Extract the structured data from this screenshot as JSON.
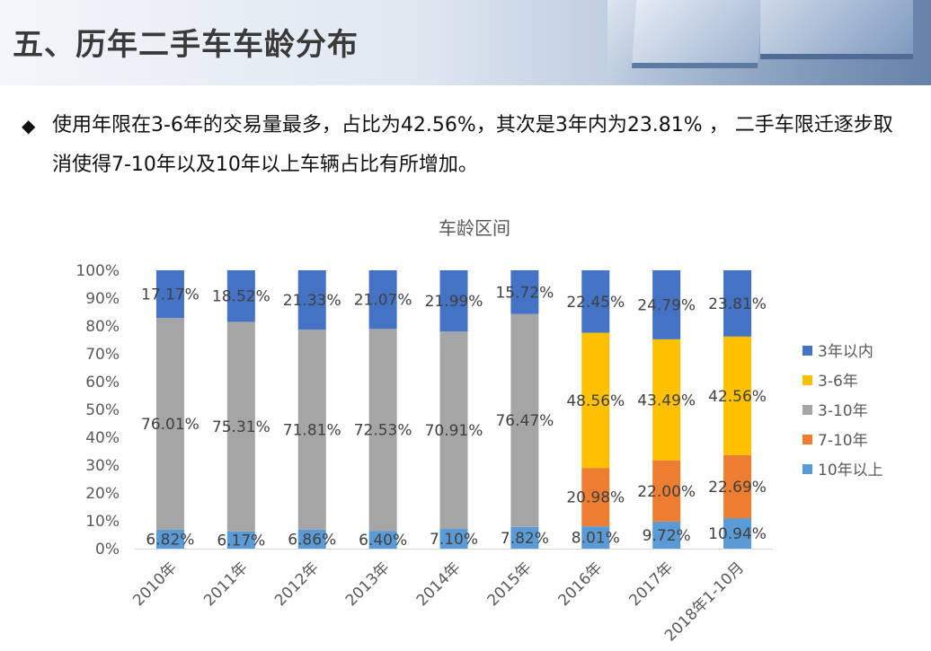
{
  "header": {
    "title": "五、历年二手车车龄分布"
  },
  "bullet": {
    "icon": "◆",
    "text": "使用年限在3-6年的交易量最多，占比为42.56%，其次是3年内为23.81% ， 二手车限迁逐步取消使得7-10年以及10年以上车辆占比有所增加。"
  },
  "chart_data": {
    "type": "bar",
    "stacked": true,
    "percent_stacked": true,
    "title": "车龄区间",
    "categories": [
      "2010年",
      "2011年",
      "2012年",
      "2013年",
      "2014年",
      "2015年",
      "2016年",
      "2017年",
      "2018年1-10月"
    ],
    "y_ticks": [
      "0%",
      "10%",
      "20%",
      "30%",
      "40%",
      "50%",
      "60%",
      "70%",
      "80%",
      "90%",
      "100%"
    ],
    "ylim": [
      0,
      100
    ],
    "legend_position": "right",
    "series": [
      {
        "name": "10年以上",
        "color": "#5b9bd5",
        "values": [
          6.82,
          6.17,
          6.86,
          6.4,
          7.1,
          7.82,
          8.01,
          9.72,
          10.94
        ],
        "labels": [
          "6.82%",
          "6.17%",
          "6.86%",
          "6.40%",
          "7.10%",
          "7.82%",
          "8.01%",
          "9.72%",
          "10.94%"
        ]
      },
      {
        "name": "7-10年",
        "color": "#ed7d31",
        "values": [
          0,
          0,
          0,
          0,
          0,
          0,
          20.98,
          22.0,
          22.69
        ],
        "labels": [
          "",
          "",
          "",
          "",
          "",
          "",
          "20.98%",
          "22.00%",
          "22.69%"
        ]
      },
      {
        "name": "3-10年",
        "color": "#a5a5a5",
        "values": [
          76.01,
          75.31,
          71.81,
          72.53,
          70.91,
          76.47,
          0,
          0,
          0
        ],
        "labels": [
          "76.01%",
          "75.31%",
          "71.81%",
          "72.53%",
          "70.91%",
          "76.47%",
          "",
          "",
          ""
        ]
      },
      {
        "name": "3-6年",
        "color": "#ffc000",
        "values": [
          0,
          0,
          0,
          0,
          0,
          0,
          48.56,
          43.49,
          42.56
        ],
        "labels": [
          "",
          "",
          "",
          "",
          "",
          "",
          "48.56%",
          "43.49%",
          "42.56%"
        ]
      },
      {
        "name": "3年以内",
        "color": "#4472c4",
        "values": [
          17.17,
          18.52,
          21.33,
          21.07,
          21.99,
          15.72,
          22.45,
          24.79,
          23.81
        ],
        "labels": [
          "17.17%",
          "18.52%",
          "21.33%",
          "21.07%",
          "21.99%",
          "15.72%",
          "22.45%",
          "24.79%",
          "23.81%"
        ]
      }
    ],
    "legend_order": [
      "3年以内",
      "3-6年",
      "3-10年",
      "7-10年",
      "10年以上"
    ]
  }
}
